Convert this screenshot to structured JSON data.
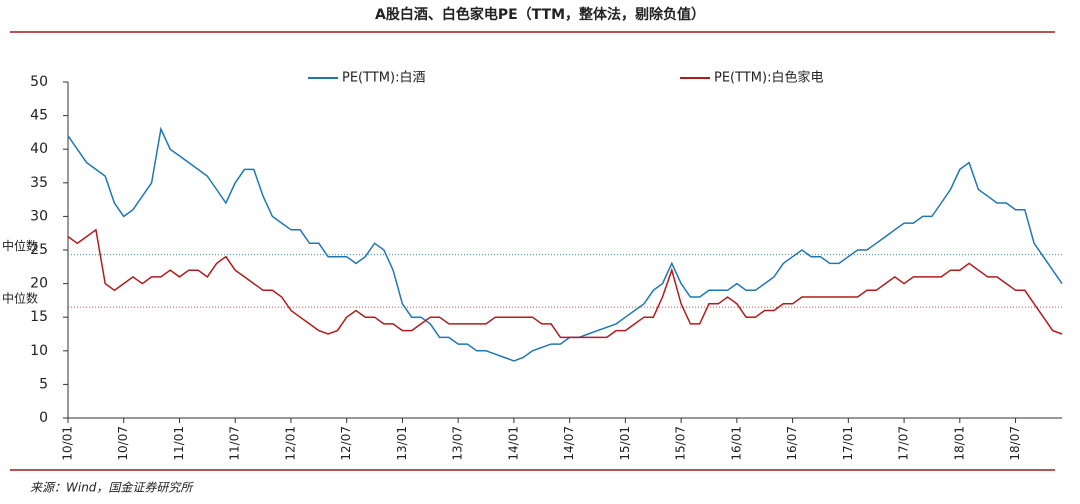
{
  "chart_data": {
    "type": "line",
    "title": "A股白酒、白色家电PE（TTM，整体法，剔除负值）",
    "source": "来源：Wind，国金证券研究所",
    "categories": [
      "10/01",
      null,
      null,
      null,
      null,
      null,
      "10/07",
      null,
      null,
      null,
      null,
      null,
      "11/01",
      null,
      null,
      null,
      null,
      null,
      "11/07",
      null,
      null,
      null,
      null,
      null,
      "12/01",
      null,
      null,
      null,
      null,
      null,
      "12/07",
      null,
      null,
      null,
      null,
      null,
      "13/01",
      null,
      null,
      null,
      null,
      null,
      "13/07",
      null,
      null,
      null,
      null,
      null,
      "14/01",
      null,
      null,
      null,
      null,
      null,
      "14/07",
      null,
      null,
      null,
      null,
      null,
      "15/01",
      null,
      null,
      null,
      null,
      null,
      "15/07",
      null,
      null,
      null,
      null,
      null,
      "16/01",
      null,
      null,
      null,
      null,
      null,
      "16/07",
      null,
      null,
      null,
      null,
      null,
      "17/01",
      null,
      null,
      null,
      null,
      null,
      "17/07",
      null,
      null,
      null,
      null,
      null,
      "18/01",
      null,
      null,
      null,
      null,
      null,
      "18/07",
      null,
      null,
      null,
      null,
      null
    ],
    "series": [
      {
        "name": "PE(TTM):白酒",
        "color": "#1f77b4",
        "values": [
          42,
          40,
          38,
          37,
          36,
          32,
          30,
          31,
          33,
          35,
          43,
          40,
          39,
          38,
          37,
          36,
          34,
          32,
          35,
          37,
          37,
          33,
          30,
          29,
          28,
          28,
          26,
          26,
          24,
          24,
          24,
          23,
          24,
          26,
          25,
          22,
          17,
          15,
          15,
          14,
          12,
          12,
          11,
          11,
          10,
          10,
          9.5,
          9,
          8.5,
          9,
          10,
          10.5,
          11,
          11,
          12,
          12,
          12.5,
          13,
          13.5,
          14,
          15,
          16,
          17,
          19,
          20,
          23,
          20,
          18,
          18,
          19,
          19,
          19,
          20,
          19,
          19,
          20,
          21,
          23,
          24,
          25,
          24,
          24,
          23,
          23,
          24,
          25,
          25,
          26,
          27,
          28,
          29,
          29,
          30,
          30,
          32,
          34,
          37,
          38,
          34,
          33,
          32,
          32,
          31,
          31,
          26,
          24,
          22,
          20
        ]
      },
      {
        "name": "PE(TTM):白色家电",
        "color": "#b01c1c",
        "values": [
          27,
          26,
          27,
          28,
          20,
          19,
          20,
          21,
          20,
          21,
          21,
          22,
          21,
          22,
          22,
          21,
          23,
          24,
          22,
          21,
          20,
          19,
          19,
          18,
          16,
          15,
          14,
          13,
          12.5,
          13,
          15,
          16,
          15,
          15,
          14,
          14,
          13,
          13,
          14,
          15,
          15,
          14,
          14,
          14,
          14,
          14,
          15,
          15,
          15,
          15,
          15,
          14,
          14,
          12,
          12,
          12,
          12,
          12,
          12,
          13,
          13,
          14,
          15,
          15,
          18,
          22,
          17,
          14,
          14,
          17,
          17,
          18,
          17,
          15,
          15,
          16,
          16,
          17,
          17,
          18,
          18,
          18,
          18,
          18,
          18,
          18,
          19,
          19,
          20,
          21,
          20,
          21,
          21,
          21,
          21,
          22,
          22,
          23,
          22,
          21,
          21,
          20,
          19,
          19,
          17,
          15,
          13,
          12.5
        ]
      }
    ],
    "reference_lines": [
      {
        "label": "中位数",
        "value": 24.3,
        "color": "#1f77b4"
      },
      {
        "label": "中位数",
        "value": 16.5,
        "color": "#b01c1c"
      }
    ],
    "ylim": [
      0,
      50
    ],
    "yticks": [
      0,
      5,
      10,
      15,
      20,
      25,
      30,
      35,
      40,
      45,
      50
    ]
  }
}
